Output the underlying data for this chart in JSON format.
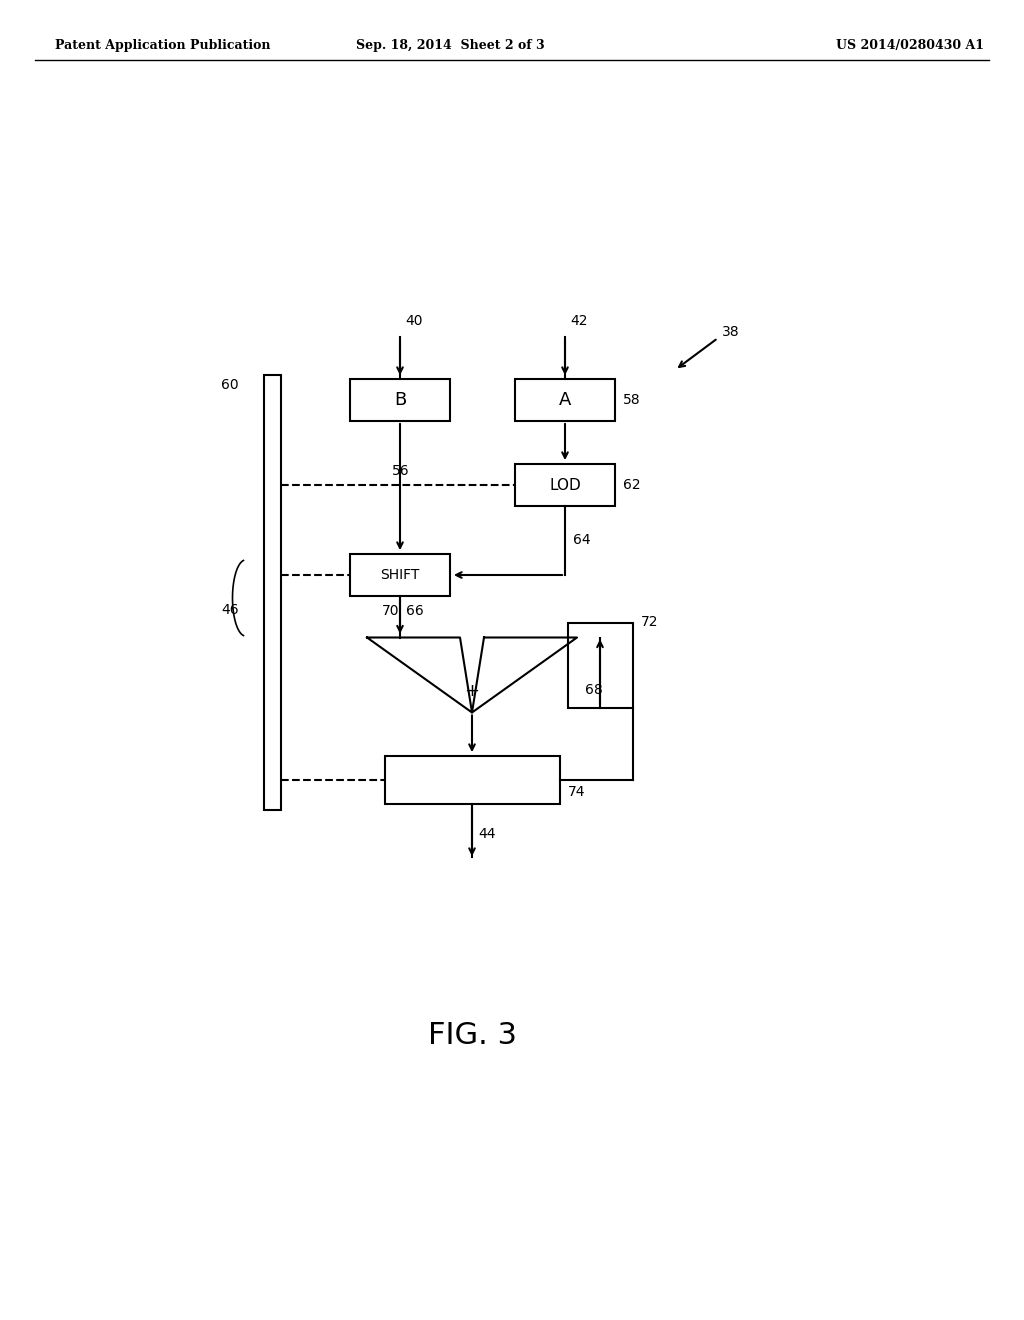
{
  "bg_color": "#ffffff",
  "header_left": "Patent Application Publication",
  "header_center": "Sep. 18, 2014  Sheet 2 of 3",
  "header_right": "US 2014/0280430 A1",
  "fig_label": "FIG. 3"
}
